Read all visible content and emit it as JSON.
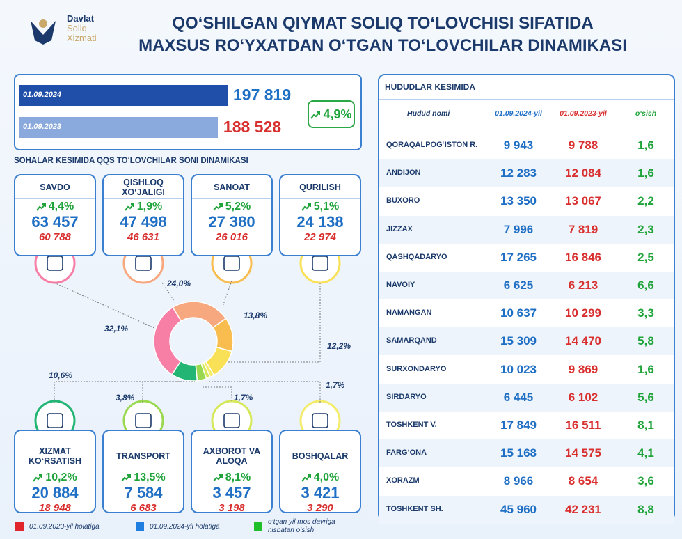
{
  "header": {
    "logo": [
      "Davlat",
      "Soliq",
      "Xizmati"
    ],
    "title_lines": [
      "QO‘SHILGAN QIYMAT SOLIQ TO‘LOVCHISI SIFATIDA",
      "MAXSUS RO‘YXATDAN O‘TGAN TO‘LOVCHILAR DINAMIKASI"
    ]
  },
  "summary": {
    "dates": [
      "01.09.2024",
      "01.09.2023"
    ],
    "values": [
      197819,
      188528
    ],
    "value_labels": [
      "197 819",
      "188 528"
    ],
    "colors": [
      "#1f4fa8",
      "#8aa9dc"
    ],
    "label_colors": [
      "#1f6fc5",
      "#d8302f"
    ],
    "growth": "4,9%"
  },
  "sectors_title": "SOHALAR KESIMIDA QQS TO‘LOVCHILAR SONI DINAMIKASI",
  "sectors": [
    {
      "name": "SAVDO",
      "growth": "4,4%",
      "current": "63 457",
      "previous": "60 788",
      "share": 32.1,
      "share_label": "32,1%",
      "color": "#f77fa6"
    },
    {
      "name": "QISHLOQ XO‘JALIGI",
      "growth": "1,9%",
      "current": "47 498",
      "previous": "46 631",
      "share": 24.0,
      "share_label": "24,0%",
      "color": "#f8a87e"
    },
    {
      "name": "SANOAT",
      "growth": "5,2%",
      "current": "27 380",
      "previous": "26 016",
      "share": 13.8,
      "share_label": "13,8%",
      "color": "#f9bc4e"
    },
    {
      "name": "QURILISH",
      "growth": "5,1%",
      "current": "24 138",
      "previous": "22 974",
      "share": 12.2,
      "share_label": "12,2%",
      "color": "#f9e157"
    },
    {
      "name": "XIZMAT KO‘RSATISH",
      "growth": "10,2%",
      "current": "20 884",
      "previous": "18 948",
      "share": 10.6,
      "share_label": "10,6%",
      "color": "#22b573"
    },
    {
      "name": "TRANSPORT",
      "growth": "13,5%",
      "current": "7 584",
      "previous": "6 683",
      "share": 3.8,
      "share_label": "3,8%",
      "color": "#9ad84f"
    },
    {
      "name": "AXBOROT VA ALOQA",
      "growth": "8,1%",
      "current": "3 457",
      "previous": "3 198",
      "share": 1.7,
      "share_label": "1,7%",
      "color": "#d6e85a"
    },
    {
      "name": "BOSHQALAR",
      "growth": "4,0%",
      "current": "3 421",
      "previous": "3 290",
      "share": 1.7,
      "share_label": "1,7%",
      "color": "#f3ec6a"
    }
  ],
  "legend": [
    {
      "label": "01.09.2023-yil holatiga",
      "color": "#e0262b"
    },
    {
      "label": "01.09.2024-yil holatiga",
      "color": "#1f7fe0"
    },
    {
      "label": "o‘tgan yil mos davriga nisbatan o‘sish",
      "color": "#1fbf2a"
    }
  ],
  "regions": {
    "title": "HUDUDLAR KESIMIDA",
    "columns": [
      "Hudud nomi",
      "01.09.2024-yil",
      "01.09.2023-yil",
      "o‘sish"
    ],
    "rows": [
      [
        "QORAQALPOG‘ISTON R.",
        "9 943",
        "9 788",
        "1,6"
      ],
      [
        "ANDIJON",
        "12 283",
        "12 084",
        "1,6"
      ],
      [
        "BUXORO",
        "13 350",
        "13 067",
        "2,2"
      ],
      [
        "JIZZAX",
        "7 996",
        "7 819",
        "2,3"
      ],
      [
        "QASHQADARYO",
        "17 265",
        "16 846",
        "2,5"
      ],
      [
        "NAVOIY",
        "6 625",
        "6 213",
        "6,6"
      ],
      [
        "NAMANGAN",
        "10 637",
        "10 299",
        "3,3"
      ],
      [
        "SAMARQAND",
        "15 309",
        "14 470",
        "5,8"
      ],
      [
        "SURXONDARYO",
        "10 023",
        "9 869",
        "1,6"
      ],
      [
        "SIRDARYO",
        "6 445",
        "6 102",
        "5,6"
      ],
      [
        "TOSHKENT V.",
        "17 849",
        "16 511",
        "8,1"
      ],
      [
        "FARG‘ONA",
        "15 168",
        "14 575",
        "4,1"
      ],
      [
        "XORAZM",
        "8 966",
        "8 654",
        "3,6"
      ],
      [
        "TOSHKENT SH.",
        "45 960",
        "42 231",
        "8,8"
      ]
    ]
  }
}
